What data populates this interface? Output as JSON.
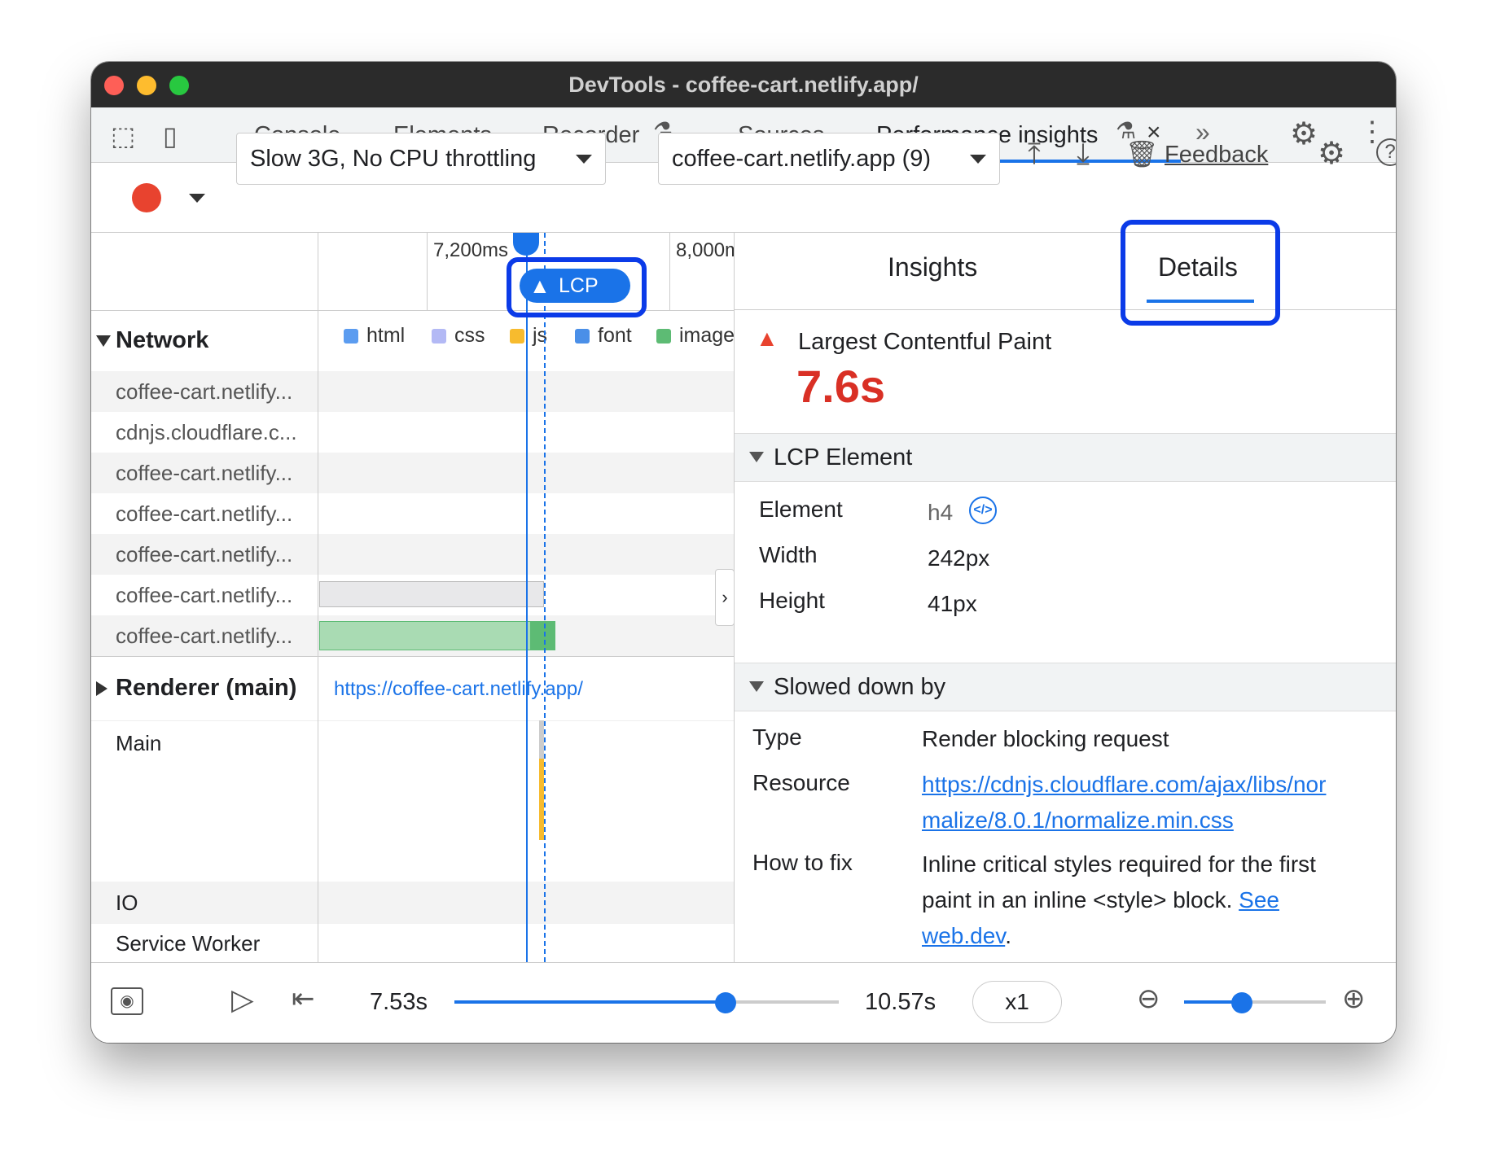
{
  "window": {
    "title": "DevTools - coffee-cart.netlify.app/"
  },
  "tabs": [
    {
      "label": "Console"
    },
    {
      "label": "Elements"
    },
    {
      "label": "Recorder"
    },
    {
      "label": "Sources"
    },
    {
      "label": "Performance insights",
      "active": true
    }
  ],
  "toolbar": {
    "throttling": "Slow 3G, No CPU throttling",
    "recording": "coffee-cart.netlify.app (9)",
    "feedback": "Feedback"
  },
  "timeline": {
    "ticks": [
      "7,200ms",
      "8,000ms"
    ],
    "marker": "LCP",
    "network_label": "Network",
    "legend": [
      {
        "label": "html",
        "color": "#5b9cf0"
      },
      {
        "label": "css",
        "color": "#b3b9f5"
      },
      {
        "label": "js",
        "color": "#f7bb2e"
      },
      {
        "label": "font",
        "color": "#4a8fe8"
      },
      {
        "label": "image",
        "color": "#5dbb74"
      }
    ],
    "requests": [
      "coffee-cart.netlify...",
      "cdnjs.cloudflare.c...",
      "coffee-cart.netlify...",
      "coffee-cart.netlify...",
      "coffee-cart.netlify...",
      "coffee-cart.netlify...",
      "coffee-cart.netlify..."
    ],
    "renderer_label": "Renderer (main)",
    "renderer_url": "https://coffee-cart.netlify.app/",
    "tracks": [
      "Main",
      "IO",
      "Service Worker"
    ]
  },
  "details": {
    "tabs": [
      "Insights",
      "Details"
    ],
    "active_tab": "Details",
    "metric": "Largest Contentful Paint",
    "value": "7.6s",
    "lcp_section": "LCP Element",
    "lcp_rows": [
      {
        "key": "Element",
        "value": "h4"
      },
      {
        "key": "Width",
        "value": "242px"
      },
      {
        "key": "Height",
        "value": "41px"
      }
    ],
    "slowed_section": "Slowed down by",
    "type_key": "Type",
    "type_value": "Render blocking request",
    "resource_key": "Resource",
    "resource_line1": "https://cdnjs.cloudflare.com/ajax/libs/nor",
    "resource_line2": "malize/8.0.1/normalize.min.css",
    "fix_key": "How to fix",
    "fix_line1": "Inline critical styles required for the first",
    "fix_line2": "paint in an inline <style> block. ",
    "fix_link1": "See",
    "fix_link2": "web.dev",
    "fix_end": "."
  },
  "playback": {
    "start": "7.53s",
    "end": "10.57s",
    "speed": "x1",
    "progress": 0.7,
    "zoom": 0.4
  }
}
